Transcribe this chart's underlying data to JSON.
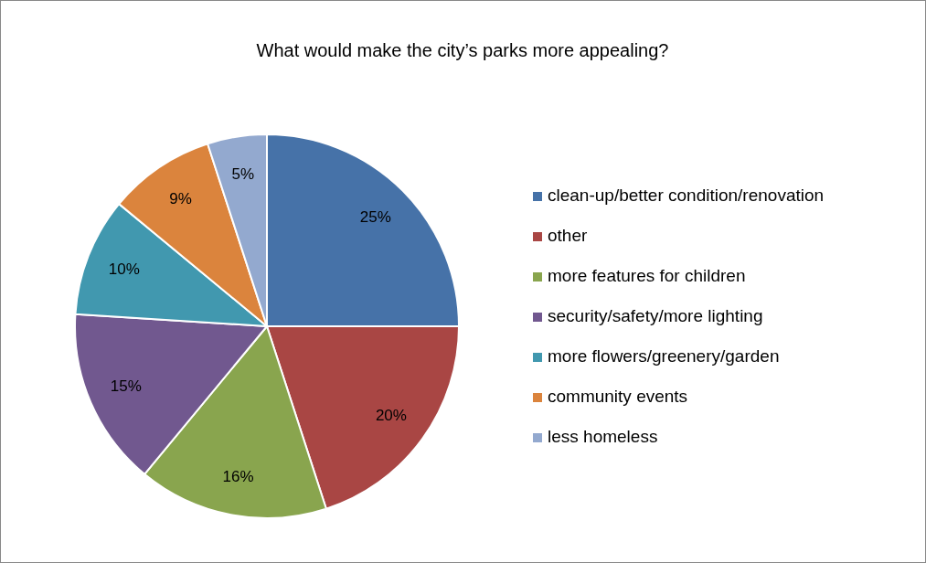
{
  "chart_data": {
    "type": "pie",
    "title": "What would make the city’s parks more appealing?",
    "categories": [
      "clean-up/better condition/renovation",
      "other",
      "more features for children",
      "security/safety/more lighting",
      "more flowers/greenery/garden",
      "community events",
      "less homeless"
    ],
    "values": [
      25,
      20,
      16,
      15,
      10,
      9,
      5
    ],
    "colors": [
      "#4672a8",
      "#a94644",
      "#89a54e",
      "#71588f",
      "#4198af",
      "#db843d",
      "#93a9cf"
    ],
    "value_labels": [
      "25%",
      "20%",
      "16%",
      "15%",
      "10%",
      "9%",
      "5%"
    ],
    "legend": "right"
  }
}
